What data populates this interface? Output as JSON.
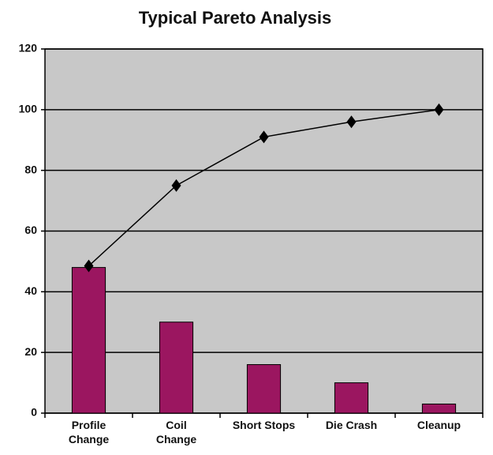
{
  "chart_data": {
    "type": "bar",
    "title": "Typical Pareto Analysis",
    "categories": [
      "Profile Change",
      "Coil Change",
      "Short Stops",
      "Die Crash",
      "Cleanup"
    ],
    "series": [
      {
        "type": "bar",
        "color": "#9b1660",
        "values": [
          48,
          30,
          16,
          10,
          3
        ]
      },
      {
        "type": "line",
        "color": "#000000",
        "values": [
          48.5,
          75,
          91,
          96,
          100
        ]
      }
    ],
    "ylim": [
      0,
      120
    ],
    "yticks": [
      0,
      20,
      40,
      60,
      80,
      100,
      120
    ],
    "grid": true
  }
}
